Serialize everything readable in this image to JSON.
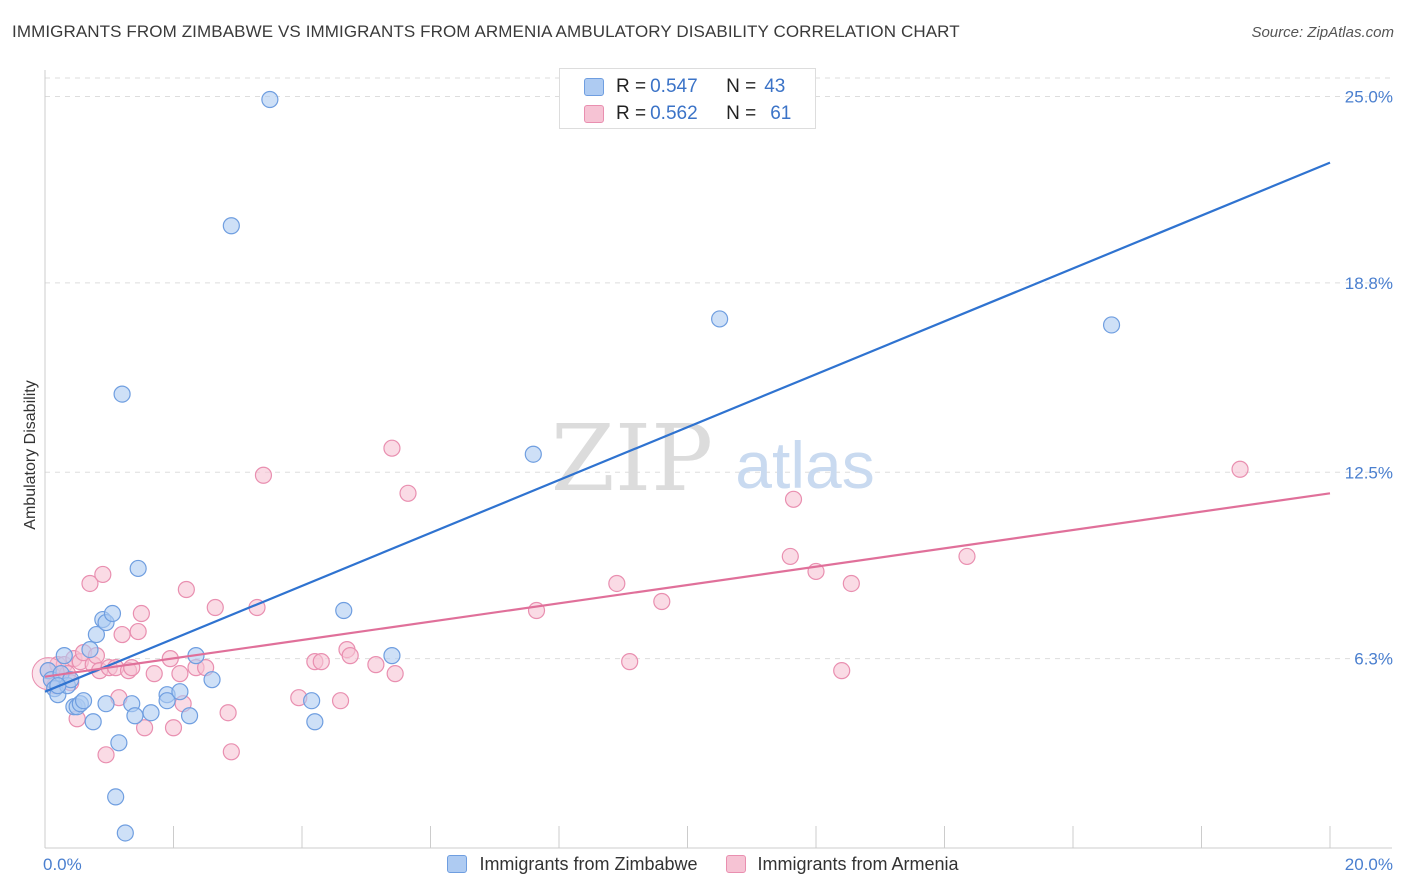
{
  "title": "IMMIGRANTS FROM ZIMBABWE VS IMMIGRANTS FROM ARMENIA AMBULATORY DISABILITY CORRELATION CHART",
  "source": "Source: ZipAtlas.com",
  "watermark": {
    "zip": "ZIP",
    "atlas": "atlas"
  },
  "legend": {
    "series1": {
      "r_label": "R = ",
      "r_value": "0.547",
      "n_label": "N = ",
      "n_value": "43"
    },
    "series2": {
      "r_label": "R = ",
      "r_value": "0.562",
      "n_label": "N = ",
      "n_value": "61"
    }
  },
  "colors": {
    "blue_line": "#2f73d0",
    "blue_fill": "#aecbf2",
    "blue_stroke": "#6f9ee0",
    "pink_line": "#e0709a",
    "pink_fill": "#f6c3d4",
    "pink_stroke": "#e98fb0",
    "grid": "#dddddd",
    "tick_text": "#4a7fcf"
  },
  "chart_data": {
    "type": "scatter",
    "title": "IMMIGRANTS FROM ZIMBABWE VS IMMIGRANTS FROM ARMENIA AMBULATORY DISABILITY CORRELATION CHART",
    "xlabel": "",
    "ylabel": "Ambulatory Disability",
    "xlim": [
      0,
      20
    ],
    "ylim": [
      0,
      25.5
    ],
    "x_tick_labels": [
      "0.0%",
      "20.0%"
    ],
    "y_ticks": [
      6.3,
      12.5,
      18.8,
      25.0
    ],
    "y_tick_labels": [
      "6.3%",
      "12.5%",
      "18.8%",
      "25.0%"
    ],
    "grid": true,
    "legend_position": "top-center",
    "series": [
      {
        "name": "Immigrants from Zimbabwe",
        "color": "blue",
        "trend": {
          "x": [
            0,
            20
          ],
          "y": [
            5.2,
            22.8
          ]
        },
        "points": [
          [
            0.05,
            5.9
          ],
          [
            0.1,
            5.6
          ],
          [
            0.15,
            5.3
          ],
          [
            0.2,
            5.1
          ],
          [
            0.25,
            5.8
          ],
          [
            0.3,
            6.4
          ],
          [
            0.35,
            5.4
          ],
          [
            0.4,
            5.6
          ],
          [
            0.45,
            4.7
          ],
          [
            0.5,
            4.7
          ],
          [
            0.55,
            4.8
          ],
          [
            0.6,
            4.9
          ],
          [
            0.7,
            6.6
          ],
          [
            0.75,
            4.2
          ],
          [
            0.8,
            7.1
          ],
          [
            0.9,
            7.6
          ],
          [
            0.95,
            7.5
          ],
          [
            0.95,
            4.8
          ],
          [
            1.05,
            7.8
          ],
          [
            1.15,
            3.5
          ],
          [
            1.2,
            15.1
          ],
          [
            1.1,
            1.7
          ],
          [
            1.25,
            0.5
          ],
          [
            1.35,
            4.8
          ],
          [
            1.4,
            4.4
          ],
          [
            1.45,
            9.3
          ],
          [
            1.65,
            4.5
          ],
          [
            1.9,
            5.1
          ],
          [
            1.9,
            4.9
          ],
          [
            2.1,
            5.2
          ],
          [
            2.25,
            4.4
          ],
          [
            2.35,
            6.4
          ],
          [
            2.6,
            5.6
          ],
          [
            2.9,
            20.7
          ],
          [
            3.5,
            24.9
          ],
          [
            4.15,
            4.9
          ],
          [
            4.2,
            4.2
          ],
          [
            4.65,
            7.9
          ],
          [
            5.4,
            6.4
          ],
          [
            7.6,
            13.1
          ],
          [
            10.5,
            17.6
          ],
          [
            16.6,
            17.4
          ],
          [
            0.2,
            5.4
          ]
        ]
      },
      {
        "name": "Immigrants from Armenia",
        "color": "pink",
        "trend": {
          "x": [
            0,
            20
          ],
          "y": [
            5.7,
            11.8
          ]
        },
        "points": [
          [
            0.05,
            5.9
          ],
          [
            0.1,
            5.6
          ],
          [
            0.15,
            5.4
          ],
          [
            0.2,
            6.1
          ],
          [
            0.25,
            5.7
          ],
          [
            0.3,
            6.1
          ],
          [
            0.35,
            5.8
          ],
          [
            0.4,
            5.5
          ],
          [
            0.45,
            6.3
          ],
          [
            0.55,
            6.2
          ],
          [
            0.5,
            4.3
          ],
          [
            0.6,
            6.5
          ],
          [
            0.7,
            8.8
          ],
          [
            0.75,
            6.1
          ],
          [
            0.8,
            6.4
          ],
          [
            0.85,
            5.9
          ],
          [
            0.9,
            9.1
          ],
          [
            0.95,
            3.1
          ],
          [
            1.0,
            6.0
          ],
          [
            1.1,
            6.0
          ],
          [
            1.15,
            5.0
          ],
          [
            1.2,
            7.1
          ],
          [
            1.3,
            5.9
          ],
          [
            1.35,
            6.0
          ],
          [
            1.45,
            7.2
          ],
          [
            1.5,
            7.8
          ],
          [
            1.55,
            4.0
          ],
          [
            1.7,
            5.8
          ],
          [
            1.95,
            6.3
          ],
          [
            2.0,
            4.0
          ],
          [
            2.1,
            5.8
          ],
          [
            2.15,
            4.8
          ],
          [
            2.2,
            8.6
          ],
          [
            2.35,
            6.0
          ],
          [
            2.5,
            6.0
          ],
          [
            2.65,
            8.0
          ],
          [
            2.85,
            4.5
          ],
          [
            2.9,
            3.2
          ],
          [
            3.3,
            8.0
          ],
          [
            3.4,
            12.4
          ],
          [
            3.95,
            5.0
          ],
          [
            4.2,
            6.2
          ],
          [
            4.3,
            6.2
          ],
          [
            4.6,
            4.9
          ],
          [
            4.7,
            6.6
          ],
          [
            4.75,
            6.4
          ],
          [
            5.15,
            6.1
          ],
          [
            5.4,
            13.3
          ],
          [
            5.45,
            5.8
          ],
          [
            5.65,
            11.8
          ],
          [
            7.65,
            7.9
          ],
          [
            8.9,
            8.8
          ],
          [
            9.1,
            6.2
          ],
          [
            9.6,
            8.2
          ],
          [
            11.6,
            9.7
          ],
          [
            11.65,
            11.6
          ],
          [
            12.0,
            9.2
          ],
          [
            12.4,
            5.9
          ],
          [
            12.55,
            8.8
          ],
          [
            14.35,
            9.7
          ],
          [
            18.6,
            12.6
          ]
        ]
      }
    ]
  }
}
